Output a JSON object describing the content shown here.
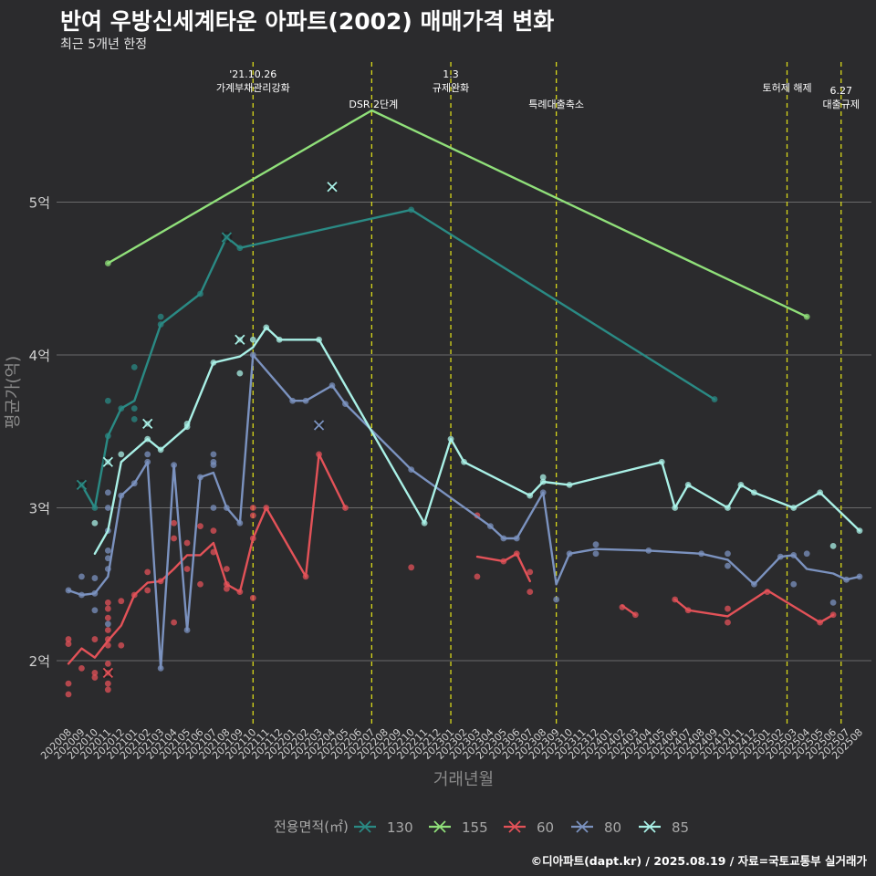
{
  "title": "반여 우방신세계타운 아파트(2002) 매매가격 변화",
  "subtitle": "최근 5개년 한정",
  "credit": "©디아파트(dapt.kr) / 2025.08.19 / 자료=국토교통부 실거래가",
  "chart_data": {
    "type": "line",
    "xlabel": "거래년월",
    "ylabel": "평균가(억)",
    "ylim": [
      1.6,
      6.0
    ],
    "yticks": [
      {
        "v": 2,
        "label": "2억"
      },
      {
        "v": 3,
        "label": "3억"
      },
      {
        "v": 4,
        "label": "4억"
      },
      {
        "v": 5,
        "label": "5억"
      }
    ],
    "grid": true,
    "legend_position": "bottom",
    "legend_title": "전용면적(㎡)",
    "x_categories": [
      "202008",
      "202009",
      "202010",
      "202011",
      "202012",
      "202101",
      "202102",
      "202103",
      "202104",
      "202105",
      "202106",
      "202107",
      "202108",
      "202109",
      "202110",
      "202111",
      "202112",
      "202201",
      "202202",
      "202203",
      "202204",
      "202205",
      "202206",
      "202207",
      "202208",
      "202209",
      "202210",
      "202211",
      "202212",
      "202301",
      "202302",
      "202303",
      "202304",
      "202305",
      "202306",
      "202307",
      "202308",
      "202309",
      "202310",
      "202311",
      "202312",
      "202401",
      "202402",
      "202403",
      "202404",
      "202405",
      "202406",
      "202407",
      "202408",
      "202409",
      "202410",
      "202411",
      "202412",
      "202501",
      "202502",
      "202503",
      "202504",
      "202505",
      "202506",
      "202507",
      "202508"
    ],
    "events": [
      {
        "label": "'21.10.26\n가계부채관리강화",
        "x": 14.0
      },
      {
        "label": "DSR 2단계",
        "x": 23.0
      },
      {
        "label": "1.3\n규제완화",
        "x": 29.0
      },
      {
        "label": "특례대출축소",
        "x": 37.0
      },
      {
        "label": "토허제 해제",
        "x": 54.5
      },
      {
        "label": "6.27\n대출규제",
        "x": 58.6
      }
    ],
    "series": [
      {
        "name": "130",
        "color": "#2a8a84",
        "line": [
          [
            1,
            3.15
          ],
          [
            2,
            3.0
          ],
          [
            3,
            3.47
          ],
          [
            4,
            3.65
          ],
          [
            5,
            3.7
          ],
          [
            7,
            4.2
          ],
          [
            10,
            4.4
          ],
          [
            12,
            4.77
          ],
          [
            13,
            4.7
          ],
          [
            26,
            4.95
          ],
          [
            49,
            3.71
          ]
        ],
        "points": [
          [
            1,
            3.15
          ],
          [
            2,
            3.0
          ],
          [
            3,
            3.7
          ],
          [
            3,
            3.47
          ],
          [
            4,
            3.65
          ],
          [
            5,
            3.92
          ],
          [
            5,
            3.65
          ],
          [
            5,
            3.58
          ],
          [
            7,
            4.25
          ],
          [
            7,
            4.2
          ],
          [
            10,
            4.4
          ],
          [
            12,
            4.77
          ],
          [
            13,
            4.7
          ],
          [
            26,
            4.95
          ],
          [
            49,
            3.71
          ]
        ],
        "crosses": [
          [
            1,
            3.15
          ],
          [
            12,
            4.77
          ]
        ]
      },
      {
        "name": "155",
        "color": "#90e07a",
        "line": [
          [
            3,
            4.6
          ],
          [
            23,
            5.6
          ],
          [
            56,
            4.25
          ]
        ],
        "points": [
          [
            3,
            4.6
          ],
          [
            56,
            4.25
          ]
        ],
        "crosses": []
      },
      {
        "name": "60",
        "color": "#e35258",
        "line": [
          [
            0,
            1.98
          ],
          [
            1,
            2.08
          ],
          [
            2,
            2.02
          ],
          [
            3,
            2.13
          ],
          [
            4,
            2.23
          ],
          [
            5,
            2.43
          ],
          [
            6,
            2.51
          ],
          [
            7,
            2.52
          ],
          [
            8,
            2.6
          ],
          [
            9,
            2.69
          ],
          [
            10,
            2.69
          ],
          [
            11,
            2.77
          ],
          [
            12,
            2.5
          ],
          [
            13,
            2.45
          ],
          [
            14,
            2.8
          ],
          [
            15,
            3.0
          ],
          [
            18,
            2.55
          ],
          [
            19,
            3.35
          ],
          [
            21,
            3.0
          ]
        ],
        "points": [
          [
            0,
            2.14
          ],
          [
            0,
            2.11
          ],
          [
            0,
            1.85
          ],
          [
            0,
            1.78
          ],
          [
            1,
            1.95
          ],
          [
            2,
            1.92
          ],
          [
            2,
            1.89
          ],
          [
            2,
            2.14
          ],
          [
            3,
            2.38
          ],
          [
            3,
            2.34
          ],
          [
            3,
            2.28
          ],
          [
            3,
            2.2
          ],
          [
            3,
            2.14
          ],
          [
            3,
            2.1
          ],
          [
            3,
            1.98
          ],
          [
            3,
            1.92
          ],
          [
            3,
            1.85
          ],
          [
            3,
            1.81
          ],
          [
            4,
            2.39
          ],
          [
            4,
            2.1
          ],
          [
            5,
            2.43
          ],
          [
            6,
            2.58
          ],
          [
            6,
            2.46
          ],
          [
            7,
            2.52
          ],
          [
            8,
            2.9
          ],
          [
            8,
            2.8
          ],
          [
            8,
            2.25
          ],
          [
            9,
            2.77
          ],
          [
            9,
            2.6
          ],
          [
            10,
            2.88
          ],
          [
            10,
            2.5
          ],
          [
            11,
            2.85
          ],
          [
            11,
            2.71
          ],
          [
            12,
            2.6
          ],
          [
            12,
            2.5
          ],
          [
            12,
            2.47
          ],
          [
            13,
            2.45
          ],
          [
            14,
            3.0
          ],
          [
            14,
            2.95
          ],
          [
            14,
            2.8
          ],
          [
            14,
            2.41
          ],
          [
            15,
            3.0
          ],
          [
            18,
            2.55
          ],
          [
            19,
            3.35
          ],
          [
            21,
            3.0
          ],
          [
            26,
            2.61
          ],
          [
            31,
            2.95
          ],
          [
            31,
            2.55
          ],
          [
            33,
            2.65
          ],
          [
            34,
            2.7
          ],
          [
            35,
            2.58
          ],
          [
            35,
            2.45
          ],
          [
            42,
            2.35
          ],
          [
            43,
            2.3
          ],
          [
            46,
            2.4
          ],
          [
            47,
            2.33
          ],
          [
            50,
            2.34
          ],
          [
            50,
            2.25
          ],
          [
            53,
            2.45
          ],
          [
            57,
            2.25
          ],
          [
            58,
            2.3
          ]
        ],
        "segments": [
          [
            [
              31,
              2.68
            ],
            [
              33,
              2.65
            ],
            [
              34,
              2.7
            ],
            [
              35,
              2.52
            ]
          ],
          [
            [
              42,
              2.36
            ],
            [
              43,
              2.3
            ]
          ],
          [
            [
              46,
              2.4
            ],
            [
              47,
              2.33
            ],
            [
              50,
              2.29
            ],
            [
              53,
              2.46
            ],
            [
              57,
              2.25
            ],
            [
              58,
              2.3
            ]
          ]
        ],
        "crosses": [
          [
            3,
            1.92
          ]
        ]
      },
      {
        "name": "80",
        "color": "#7b92bf",
        "line": [
          [
            0,
            2.46
          ],
          [
            1,
            2.43
          ],
          [
            2,
            2.44
          ],
          [
            3,
            2.55
          ],
          [
            4,
            3.08
          ],
          [
            5,
            3.16
          ],
          [
            6,
            3.3
          ],
          [
            7,
            1.95
          ],
          [
            8,
            3.28
          ],
          [
            9,
            2.2
          ],
          [
            10,
            3.2
          ],
          [
            11,
            3.23
          ],
          [
            12,
            3.0
          ],
          [
            13,
            2.9
          ],
          [
            14,
            4.0
          ],
          [
            17,
            3.7
          ],
          [
            18,
            3.7
          ],
          [
            20,
            3.8
          ],
          [
            21,
            3.68
          ],
          [
            26,
            3.25
          ],
          [
            32,
            2.88
          ],
          [
            33,
            2.8
          ],
          [
            34,
            2.8
          ],
          [
            36,
            3.1
          ],
          [
            37,
            2.5
          ],
          [
            38,
            2.7
          ],
          [
            40,
            2.73
          ],
          [
            44,
            2.72
          ],
          [
            48,
            2.7
          ],
          [
            50,
            2.66
          ],
          [
            52,
            2.5
          ],
          [
            54,
            2.68
          ],
          [
            55,
            2.69
          ],
          [
            56,
            2.6
          ],
          [
            58,
            2.57
          ],
          [
            59,
            2.53
          ],
          [
            60,
            2.55
          ]
        ],
        "points": [
          [
            0,
            2.46
          ],
          [
            1,
            2.55
          ],
          [
            1,
            2.43
          ],
          [
            2,
            2.54
          ],
          [
            2,
            2.44
          ],
          [
            2,
            2.33
          ],
          [
            3,
            3.1
          ],
          [
            3,
            3.0
          ],
          [
            3,
            2.85
          ],
          [
            3,
            2.72
          ],
          [
            3,
            2.67
          ],
          [
            3,
            2.6
          ],
          [
            3,
            2.24
          ],
          [
            4,
            3.08
          ],
          [
            5,
            3.16
          ],
          [
            6,
            3.35
          ],
          [
            6,
            3.3
          ],
          [
            7,
            1.95
          ],
          [
            8,
            3.28
          ],
          [
            9,
            2.2
          ],
          [
            10,
            3.2
          ],
          [
            11,
            3.35
          ],
          [
            11,
            3.3
          ],
          [
            11,
            3.28
          ],
          [
            11,
            3.0
          ],
          [
            12,
            3.0
          ],
          [
            13,
            2.9
          ],
          [
            14,
            4.0
          ],
          [
            17,
            3.7
          ],
          [
            18,
            3.7
          ],
          [
            20,
            3.8
          ],
          [
            21,
            3.68
          ],
          [
            26,
            3.25
          ],
          [
            32,
            2.88
          ],
          [
            33,
            2.8
          ],
          [
            34,
            2.8
          ],
          [
            36,
            3.1
          ],
          [
            37,
            2.4
          ],
          [
            38,
            2.7
          ],
          [
            40,
            2.76
          ],
          [
            40,
            2.7
          ],
          [
            44,
            2.72
          ],
          [
            48,
            2.7
          ],
          [
            50,
            2.7
          ],
          [
            50,
            2.62
          ],
          [
            52,
            2.5
          ],
          [
            54,
            2.68
          ],
          [
            55,
            2.69
          ],
          [
            55,
            2.5
          ],
          [
            56,
            2.7
          ],
          [
            58,
            2.38
          ],
          [
            59,
            2.53
          ],
          [
            60,
            2.55
          ]
        ],
        "crosses": [
          [
            19,
            3.54
          ]
        ]
      },
      {
        "name": "85",
        "color": "#a9f0e6",
        "line": [
          [
            2,
            2.7
          ],
          [
            3,
            2.85
          ],
          [
            4,
            3.3
          ],
          [
            6,
            3.45
          ],
          [
            7,
            3.38
          ],
          [
            9,
            3.53
          ],
          [
            11,
            3.95
          ],
          [
            13,
            3.99
          ],
          [
            14,
            4.05
          ],
          [
            15,
            4.18
          ],
          [
            16,
            4.1
          ],
          [
            19,
            4.1
          ],
          [
            27,
            2.9
          ],
          [
            29,
            3.45
          ],
          [
            30,
            3.3
          ],
          [
            35,
            3.08
          ],
          [
            36,
            3.17
          ],
          [
            38,
            3.15
          ],
          [
            45,
            3.3
          ],
          [
            46,
            3.0
          ],
          [
            47,
            3.15
          ],
          [
            50,
            3.0
          ],
          [
            51,
            3.15
          ],
          [
            52,
            3.1
          ],
          [
            55,
            3.0
          ],
          [
            57,
            3.1
          ],
          [
            60,
            2.85
          ]
        ],
        "points": [
          [
            2,
            2.9
          ],
          [
            3,
            3.3
          ],
          [
            4,
            3.35
          ],
          [
            6,
            3.55
          ],
          [
            6,
            3.45
          ],
          [
            7,
            3.38
          ],
          [
            9,
            3.55
          ],
          [
            9,
            3.53
          ],
          [
            11,
            3.95
          ],
          [
            13,
            4.1
          ],
          [
            13,
            3.88
          ],
          [
            14,
            4.1
          ],
          [
            15,
            4.18
          ],
          [
            16,
            4.1
          ],
          [
            19,
            4.1
          ],
          [
            27,
            2.9
          ],
          [
            29,
            3.45
          ],
          [
            30,
            3.3
          ],
          [
            35,
            3.08
          ],
          [
            36,
            3.2
          ],
          [
            36,
            3.17
          ],
          [
            38,
            3.15
          ],
          [
            45,
            3.3
          ],
          [
            46,
            3.0
          ],
          [
            47,
            3.15
          ],
          [
            50,
            3.0
          ],
          [
            51,
            3.15
          ],
          [
            52,
            3.1
          ],
          [
            55,
            3.0
          ],
          [
            57,
            3.1
          ],
          [
            58,
            2.75
          ],
          [
            60,
            2.85
          ]
        ],
        "crosses": [
          [
            3,
            3.3
          ],
          [
            6,
            3.55
          ],
          [
            13,
            4.1
          ],
          [
            20,
            5.1
          ]
        ]
      }
    ]
  }
}
